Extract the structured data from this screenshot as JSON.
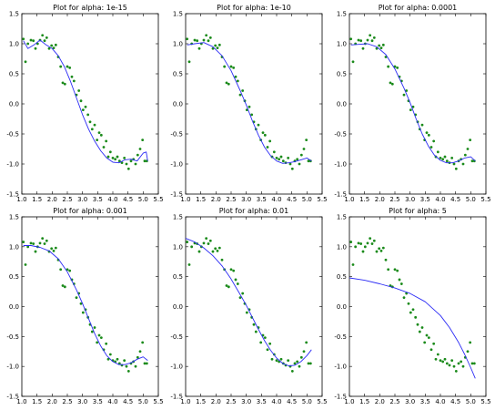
{
  "chart_data": [
    {
      "type": "scatter",
      "title": "Plot for alpha: 1e-15",
      "xlim": [
        1.0,
        5.5
      ],
      "ylim": [
        -1.5,
        1.5
      ],
      "xticks": [
        "1.0",
        "1.5",
        "2.0",
        "2.5",
        "3.0",
        "3.5",
        "4.0",
        "4.5",
        "5.0",
        "5.5"
      ],
      "yticks": [
        "1.5",
        "1.0",
        "0.5",
        "0.0",
        "-0.5",
        "-1.0",
        "-1.5"
      ],
      "fit": {
        "x": [
          1.05,
          1.2,
          1.4,
          1.6,
          1.8,
          2.0,
          2.2,
          2.4,
          2.6,
          2.8,
          3.0,
          3.2,
          3.4,
          3.6,
          3.8,
          4.0,
          4.2,
          4.4,
          4.6,
          4.8,
          5.0,
          5.1,
          5.15
        ],
        "y": [
          1.05,
          0.92,
          0.98,
          1.06,
          0.98,
          0.92,
          0.8,
          0.62,
          0.38,
          0.1,
          -0.18,
          -0.42,
          -0.62,
          -0.78,
          -0.9,
          -0.97,
          -0.98,
          -0.93,
          -0.92,
          -0.95,
          -0.82,
          -0.8,
          -0.95
        ]
      }
    },
    {
      "type": "scatter",
      "title": "Plot for alpha: 1e-10",
      "xlim": [
        1.0,
        5.5
      ],
      "ylim": [
        -1.5,
        1.5
      ],
      "xticks": [
        "1.0",
        "1.5",
        "2.0",
        "2.5",
        "3.0",
        "3.5",
        "4.0",
        "4.5",
        "5.0",
        "5.5"
      ],
      "yticks": [
        "1.5",
        "1.0",
        "0.5",
        "0.0",
        "-0.5",
        "-1.0",
        "-1.5"
      ],
      "fit": {
        "x": [
          1.05,
          1.3,
          1.6,
          1.9,
          2.2,
          2.5,
          2.8,
          3.0,
          3.2,
          3.4,
          3.6,
          3.8,
          4.0,
          4.2,
          4.4,
          4.6,
          4.8,
          5.0,
          5.15
        ],
        "y": [
          0.98,
          1.0,
          1.02,
          0.95,
          0.8,
          0.55,
          0.22,
          -0.02,
          -0.28,
          -0.52,
          -0.72,
          -0.86,
          -0.95,
          -0.99,
          -0.98,
          -0.96,
          -0.93,
          -0.9,
          -0.95
        ]
      }
    },
    {
      "type": "scatter",
      "title": "Plot for alpha: 0.0001",
      "xlim": [
        1.0,
        5.5
      ],
      "ylim": [
        -1.5,
        1.5
      ],
      "xticks": [
        "1.0",
        "1.5",
        "2.0",
        "2.5",
        "3.0",
        "3.5",
        "4.0",
        "4.5",
        "5.0",
        "5.5"
      ],
      "yticks": [
        "1.5",
        "1.0",
        "0.5",
        "0.0",
        "-0.5",
        "-1.0",
        "-1.5"
      ],
      "fit": {
        "x": [
          1.05,
          1.3,
          1.6,
          1.9,
          2.2,
          2.5,
          2.8,
          3.0,
          3.2,
          3.4,
          3.6,
          3.8,
          4.0,
          4.2,
          4.4,
          4.6,
          4.8,
          5.0,
          5.15
        ],
        "y": [
          0.98,
          0.99,
          1.0,
          0.95,
          0.82,
          0.58,
          0.26,
          0.02,
          -0.25,
          -0.5,
          -0.7,
          -0.85,
          -0.94,
          -0.98,
          -0.98,
          -0.95,
          -0.9,
          -0.88,
          -0.95
        ]
      }
    },
    {
      "type": "scatter",
      "title": "Plot for alpha: 0.001",
      "xlim": [
        1.0,
        5.5
      ],
      "ylim": [
        -1.5,
        1.5
      ],
      "xticks": [
        "1.0",
        "1.5",
        "2.0",
        "2.5",
        "3.0",
        "3.5",
        "4.0",
        "4.5",
        "5.0",
        "5.5"
      ],
      "yticks": [
        "1.5",
        "1.0",
        "0.5",
        "0.0",
        "-0.5",
        "-1.0",
        "-1.5"
      ],
      "fit": {
        "x": [
          1.05,
          1.3,
          1.6,
          1.9,
          2.2,
          2.5,
          2.8,
          3.0,
          3.2,
          3.4,
          3.6,
          3.8,
          4.0,
          4.2,
          4.4,
          4.6,
          4.8,
          5.0,
          5.15
        ],
        "y": [
          1.02,
          1.02,
          0.99,
          0.93,
          0.8,
          0.58,
          0.28,
          0.05,
          -0.2,
          -0.45,
          -0.66,
          -0.82,
          -0.92,
          -0.97,
          -0.97,
          -0.94,
          -0.88,
          -0.84,
          -0.9
        ]
      }
    },
    {
      "type": "scatter",
      "title": "Plot for alpha: 0.01",
      "xlim": [
        1.0,
        5.5
      ],
      "ylim": [
        -1.5,
        1.5
      ],
      "xticks": [
        "1.0",
        "1.5",
        "2.0",
        "2.5",
        "3.0",
        "3.5",
        "4.0",
        "4.5",
        "5.0",
        "5.5"
      ],
      "yticks": [
        "1.5",
        "1.0",
        "0.5",
        "0.0",
        "-0.5",
        "-1.0",
        "-1.5"
      ],
      "fit": {
        "x": [
          1.0,
          1.3,
          1.6,
          1.9,
          2.2,
          2.5,
          2.8,
          3.0,
          3.2,
          3.4,
          3.6,
          3.8,
          4.0,
          4.2,
          4.4,
          4.6,
          4.8,
          5.0,
          5.15
        ],
        "y": [
          1.14,
          1.08,
          0.98,
          0.85,
          0.68,
          0.46,
          0.2,
          0.02,
          -0.18,
          -0.38,
          -0.57,
          -0.73,
          -0.86,
          -0.95,
          -0.99,
          -0.98,
          -0.92,
          -0.82,
          -0.72
        ]
      }
    },
    {
      "type": "scatter",
      "title": "Plot for alpha: 5",
      "xlim": [
        1.0,
        5.5
      ],
      "ylim": [
        -1.5,
        1.5
      ],
      "xticks": [
        "1.0",
        "1.5",
        "2.0",
        "2.5",
        "3.0",
        "3.5",
        "4.0",
        "4.5",
        "5.0",
        "5.5"
      ],
      "yticks": [
        "1.5",
        "1.0",
        "0.5",
        "0.0",
        "-0.5",
        "-1.0",
        "-1.5"
      ],
      "fit": {
        "x": [
          1.0,
          1.5,
          2.0,
          2.5,
          3.0,
          3.5,
          4.0,
          4.3,
          4.6,
          4.8,
          5.0,
          5.15
        ],
        "y": [
          0.48,
          0.44,
          0.38,
          0.31,
          0.22,
          0.08,
          -0.15,
          -0.35,
          -0.6,
          -0.8,
          -1.02,
          -1.2
        ]
      }
    }
  ],
  "data_points": {
    "x": [
      1.05,
      1.12,
      1.2,
      1.3,
      1.38,
      1.45,
      1.52,
      1.6,
      1.68,
      1.75,
      1.82,
      1.9,
      1.98,
      2.05,
      2.12,
      2.2,
      2.28,
      2.35,
      2.42,
      2.5,
      2.58,
      2.65,
      2.72,
      2.8,
      2.88,
      2.95,
      3.02,
      3.1,
      3.18,
      3.25,
      3.32,
      3.4,
      3.48,
      3.55,
      3.62,
      3.7,
      3.78,
      3.85,
      3.92,
      4.0,
      4.08,
      4.15,
      4.22,
      4.3,
      4.38,
      4.45,
      4.52,
      4.6,
      4.68,
      4.75,
      4.82,
      4.9,
      4.98,
      5.05,
      5.12
    ],
    "y": [
      1.08,
      0.7,
      1.0,
      1.06,
      1.05,
      0.92,
      1.0,
      1.06,
      1.14,
      1.05,
      1.1,
      0.92,
      0.97,
      0.93,
      0.98,
      0.78,
      0.62,
      0.35,
      0.33,
      0.62,
      0.6,
      0.45,
      0.38,
      0.15,
      0.22,
      0.05,
      -0.1,
      -0.05,
      -0.18,
      -0.3,
      -0.42,
      -0.35,
      -0.6,
      -0.48,
      -0.52,
      -0.72,
      -0.62,
      -0.88,
      -0.8,
      -0.9,
      -0.92,
      -0.88,
      -0.95,
      -0.98,
      -0.9,
      -1.0,
      -1.08,
      -0.95,
      -0.92,
      -1.0,
      -0.85,
      -0.75,
      -0.6,
      -0.95,
      -0.95
    ]
  },
  "colors": {
    "fit": "#2b2bf5",
    "points": "#1a8a1a"
  }
}
